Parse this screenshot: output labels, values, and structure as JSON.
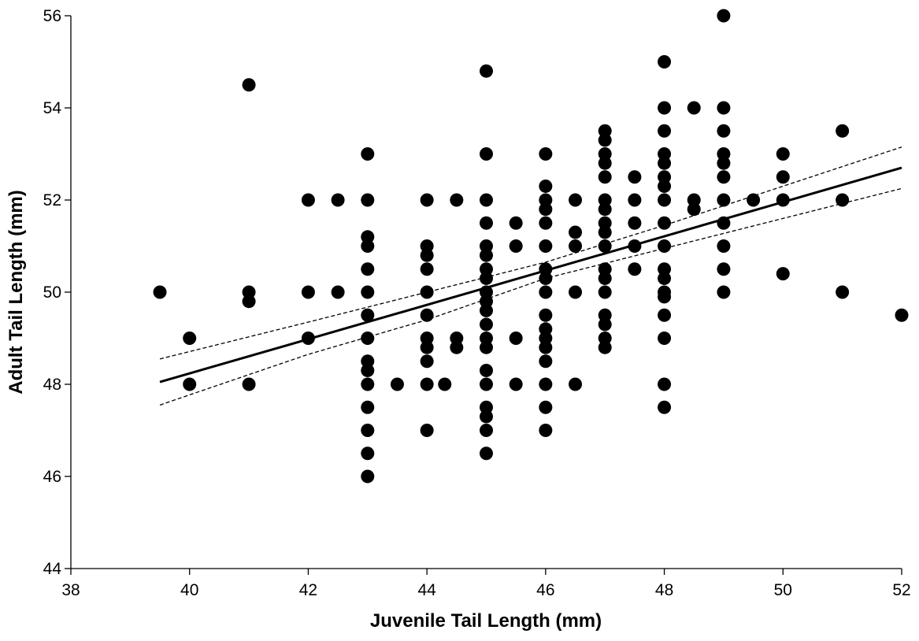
{
  "chart_data": {
    "type": "scatter",
    "xlabel": "Juvenile Tail Length (mm)",
    "ylabel": "Adult Tail Length (mm)",
    "xlim": [
      38,
      52
    ],
    "xticks": [
      38,
      40,
      42,
      44,
      46,
      48,
      50,
      52
    ],
    "ylim": [
      44,
      56
    ],
    "yticks": [
      44,
      46,
      48,
      50,
      52,
      54,
      56
    ],
    "grid": false,
    "series": [
      {
        "mode": "markers",
        "color": "#000000",
        "x": [
          39.5,
          40,
          40,
          41,
          41,
          41,
          41,
          42,
          42,
          42,
          42.5,
          42.5,
          43,
          43,
          43,
          43,
          43,
          43,
          43,
          43,
          43,
          43,
          43,
          43,
          43,
          43,
          43,
          43.5,
          44,
          44,
          44,
          44,
          44,
          44,
          44,
          44,
          44,
          44,
          44,
          44.3,
          44.5,
          44.5,
          44.5,
          45,
          45,
          45,
          45,
          45,
          45,
          45,
          45,
          45,
          45,
          45,
          45,
          45,
          45,
          45,
          45,
          45,
          45,
          45,
          45,
          45.5,
          45.5,
          45.5,
          45.5,
          46,
          46,
          46,
          46,
          46,
          46,
          46,
          46,
          46,
          46,
          46,
          46,
          46,
          46,
          46,
          46,
          46,
          46.5,
          46.5,
          46.5,
          46.5,
          46.5,
          47,
          47,
          47,
          47,
          47,
          47,
          47,
          47,
          47,
          47,
          47,
          47,
          47,
          47,
          47,
          47,
          47,
          47.5,
          47.5,
          47.5,
          47.5,
          47.5,
          48,
          48,
          48,
          48,
          48,
          48,
          48,
          48,
          48,
          48,
          48,
          48,
          48,
          48,
          48,
          48,
          48,
          48,
          48.5,
          48.5,
          48.5,
          49,
          49,
          49,
          49,
          49,
          49,
          49,
          49,
          49,
          49,
          49,
          49.5,
          50,
          50,
          50,
          50,
          51,
          51,
          51,
          52
        ],
        "values": [
          50,
          49,
          48,
          54.5,
          50,
          49.8,
          48,
          52,
          50,
          49,
          52,
          50,
          53,
          52,
          51.2,
          51,
          50.5,
          50,
          49.5,
          49,
          48.5,
          48.3,
          48,
          47.5,
          47,
          46.5,
          46,
          48,
          52,
          51,
          50.8,
          50.5,
          50,
          49.5,
          49,
          48.8,
          48.5,
          48,
          47,
          48,
          52,
          49,
          48.8,
          54.8,
          53,
          52,
          51.5,
          51,
          50.8,
          50.5,
          50.3,
          50,
          49.8,
          49.6,
          49.3,
          49,
          48.8,
          48.3,
          48,
          47.5,
          47.3,
          47,
          46.5,
          51.5,
          51,
          49,
          48,
          53,
          52.3,
          52,
          51.8,
          51.5,
          51,
          50.5,
          50.3,
          50,
          49.5,
          49.2,
          49,
          48.8,
          48.5,
          48,
          47.5,
          47,
          52,
          51.3,
          51,
          50,
          48,
          53.5,
          53.3,
          53,
          52.8,
          52.5,
          52,
          51.8,
          51.5,
          51.3,
          51,
          50.5,
          50.3,
          50,
          49.5,
          49.3,
          49,
          48.8,
          52.5,
          52,
          51.5,
          51,
          50.5,
          55,
          54,
          53.5,
          53,
          52.8,
          52.5,
          52.3,
          52,
          51.5,
          51,
          50.5,
          50.3,
          50,
          49.9,
          49.5,
          49,
          48,
          47.5,
          54,
          52,
          51.8,
          56,
          54,
          53.5,
          53,
          52.8,
          52.5,
          52,
          51.5,
          51,
          50.5,
          50,
          52,
          53,
          52.5,
          52,
          50.4,
          53.5,
          52,
          50,
          49.5
        ]
      },
      {
        "mode": "line",
        "dash": false,
        "color": "#000000",
        "x": [
          39.5,
          52
        ],
        "values": [
          48.05,
          52.7
        ]
      },
      {
        "mode": "line",
        "dash": true,
        "color": "#000000",
        "x": [
          39.5,
          42,
          44,
          46,
          48,
          50,
          52
        ],
        "values": [
          48.55,
          49.35,
          50.0,
          50.65,
          51.45,
          52.3,
          53.15
        ]
      },
      {
        "mode": "line",
        "dash": true,
        "color": "#000000",
        "x": [
          39.5,
          42,
          44,
          46,
          48,
          50,
          52
        ],
        "values": [
          47.55,
          48.65,
          49.4,
          50.3,
          50.95,
          51.6,
          52.25
        ]
      }
    ]
  }
}
